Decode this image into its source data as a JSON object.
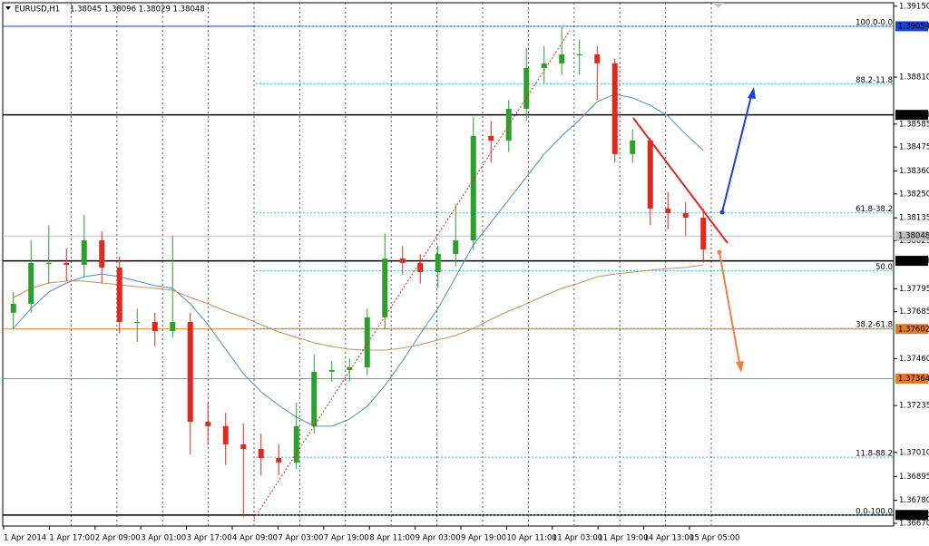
{
  "chart_data": {
    "type": "candlestick",
    "title": "EURUSD,H1",
    "quote": "1.38045 1.38096 1.38029 1.38048",
    "xlabels": [
      "1 Apr 2014",
      "1 Apr 17:00",
      "2 Apr 09:00",
      "3 Apr 01:00",
      "3 Apr 17:00",
      "4 Apr 09:00",
      "7 Apr 03:00",
      "7 Apr 19:00",
      "8 Apr 11:00",
      "9 Apr 03:00",
      "9 Apr 19:00",
      "10 Apr 11:00",
      "11 Apr 03:00",
      "11 Apr 19:00",
      "14 Apr 13:00",
      "15 Apr 05:00"
    ],
    "open": [
      1.3768,
      1.37723,
      1.37919,
      1.37919,
      1.3791,
      1.38027,
      1.37897,
      1.37636,
      1.37636,
      1.37592,
      1.37636,
      1.37157,
      1.37136,
      1.37049,
      1.37027,
      1.36983,
      1.36962,
      1.37136,
      1.37397,
      1.37405,
      1.37418,
      1.37658,
      1.3794,
      1.37919,
      1.37875,
      1.37962,
      1.38027,
      1.38528,
      1.38506,
      1.38658,
      1.38854,
      1.38876,
      1.38919,
      1.38919,
      1.38876,
      1.38441,
      1.38506,
      1.3818,
      1.38158,
      1.38136
    ],
    "high": [
      1.3778,
      1.3803,
      1.381,
      1.3799,
      1.3815,
      1.3807,
      1.3795,
      1.377,
      1.3768,
      1.3805,
      1.3768,
      1.3725,
      1.372,
      1.3715,
      1.371,
      1.3705,
      1.3725,
      1.3748,
      1.3745,
      1.3746,
      1.377,
      1.3806,
      1.38,
      1.3796,
      1.38,
      1.382,
      1.3862,
      1.386,
      1.387,
      1.3895,
      1.3896,
      1.3905,
      1.3899,
      1.3896,
      1.389,
      1.3856,
      1.3852,
      1.3826,
      1.3821,
      1.3818
    ],
    "low": [
      1.376,
      1.3768,
      1.3782,
      1.3783,
      1.3785,
      1.3782,
      1.3758,
      1.3754,
      1.3752,
      1.3756,
      1.37,
      1.3705,
      1.3695,
      1.367,
      1.369,
      1.369,
      1.3693,
      1.371,
      1.3735,
      1.3735,
      1.3738,
      1.376,
      1.3786,
      1.3782,
      1.378,
      1.379,
      1.3798,
      1.384,
      1.3845,
      1.386,
      1.3878,
      1.3882,
      1.3882,
      1.387,
      1.384,
      1.384,
      1.381,
      1.3808,
      1.3805,
      1.3792
    ],
    "close": [
      1.37723,
      1.37919,
      1.37919,
      1.3791,
      1.38027,
      1.37897,
      1.37636,
      1.37636,
      1.37592,
      1.37636,
      1.37157,
      1.37136,
      1.37049,
      1.37027,
      1.36983,
      1.36962,
      1.37136,
      1.37397,
      1.37405,
      1.37418,
      1.37658,
      1.3794,
      1.37919,
      1.37875,
      1.37962,
      1.38027,
      1.38528,
      1.38506,
      1.38658,
      1.38854,
      1.38876,
      1.38919,
      1.38919,
      1.38876,
      1.38441,
      1.38506,
      1.3818,
      1.38158,
      1.38136,
      1.37984
    ],
    "up_color": "#2ca02c",
    "down_color": "#e0281e",
    "ma": [
      {
        "color": "#4a8fd0",
        "values": [
          1.37605,
          1.37701,
          1.37779,
          1.37823,
          1.37853,
          1.37866,
          1.37853,
          1.37832,
          1.3781,
          1.37797,
          1.37723,
          1.37623,
          1.37505,
          1.37388,
          1.37301,
          1.37236,
          1.37179,
          1.37136,
          1.37136,
          1.3717,
          1.37231,
          1.37331,
          1.37449,
          1.37579,
          1.37701,
          1.37853,
          1.38006,
          1.38114,
          1.38223,
          1.38332,
          1.38441,
          1.38528,
          1.38606,
          1.38693,
          1.38728,
          1.3871,
          1.38675,
          1.38623,
          1.38536,
          1.38458
        ]
      },
      {
        "color": "#c8915a",
        "values": [
          1.37753,
          1.37797,
          1.37823,
          1.37832,
          1.37832,
          1.37823,
          1.37814,
          1.37805,
          1.37797,
          1.37788,
          1.37753,
          1.37723,
          1.37688,
          1.37658,
          1.37623,
          1.37588,
          1.37562,
          1.37536,
          1.37518,
          1.37505,
          1.37501,
          1.37501,
          1.3751,
          1.37527,
          1.37549,
          1.37571,
          1.37605,
          1.37649,
          1.37688,
          1.37723,
          1.37762,
          1.37797,
          1.37823,
          1.37853,
          1.37866,
          1.37875,
          1.37884,
          1.37892,
          1.37897,
          1.3791
        ]
      }
    ],
    "ylim": [
      1.36657,
      1.3918
    ],
    "yticks": [
      {
        "value": 1.3915,
        "label": "1.39150"
      },
      {
        "value": 1.3881,
        "label": "1.38810"
      },
      {
        "value": 1.38585,
        "label": "1.38585"
      },
      {
        "value": 1.38475,
        "label": "1.38475"
      },
      {
        "value": 1.3836,
        "label": "1.38360"
      },
      {
        "value": 1.3825,
        "label": "1.38250"
      },
      {
        "value": 1.38135,
        "label": "1.38135"
      },
      {
        "value": 1.38025,
        "label": "1.38025"
      },
      {
        "value": 1.37795,
        "label": "1.37795"
      },
      {
        "value": 1.37685,
        "label": "1.37685"
      },
      {
        "value": 1.3746,
        "label": "1.37460"
      },
      {
        "value": 1.37235,
        "label": "1.37235"
      },
      {
        "value": 1.3701,
        "label": "1.37010"
      },
      {
        "value": 1.36895,
        "label": "1.36895"
      },
      {
        "value": 1.3678,
        "label": "1.36780"
      },
      {
        "value": 1.3667,
        "label": "1.36670"
      }
    ],
    "price_levels": [
      {
        "value": 1.39054,
        "label": "1.39054",
        "color": "#1f3fd6"
      },
      {
        "value": 1.38629,
        "label": "1.38629",
        "color": "#000000"
      },
      {
        "value": 1.38048,
        "label": "1.38048",
        "color": "#c0c0c0"
      },
      {
        "value": 1.37929,
        "label": "1.37929",
        "color": "#000000"
      },
      {
        "value": 1.37602,
        "label": "1.37602",
        "color": "#e07a2a"
      },
      {
        "value": 1.37364,
        "label": "1.37364",
        "color": "#e07a2a"
      },
      {
        "value": 1.3671,
        "label": "1.36710",
        "color": "#000000"
      }
    ],
    "fib_color": "#3cb8e0",
    "fib_levels": [
      {
        "value": 1.39054,
        "label": "100.0-0.0"
      },
      {
        "value": 1.38778,
        "label": "88.2-11.8"
      },
      {
        "value": 1.38159,
        "label": "61.8-38.2"
      },
      {
        "value": 1.37882,
        "label": "50.0"
      },
      {
        "value": 1.37605,
        "label": "38.2-61.8"
      },
      {
        "value": 1.36987,
        "label": "11.8-88.2"
      },
      {
        "value": 1.3671,
        "label": "0.0-100.0"
      }
    ]
  }
}
